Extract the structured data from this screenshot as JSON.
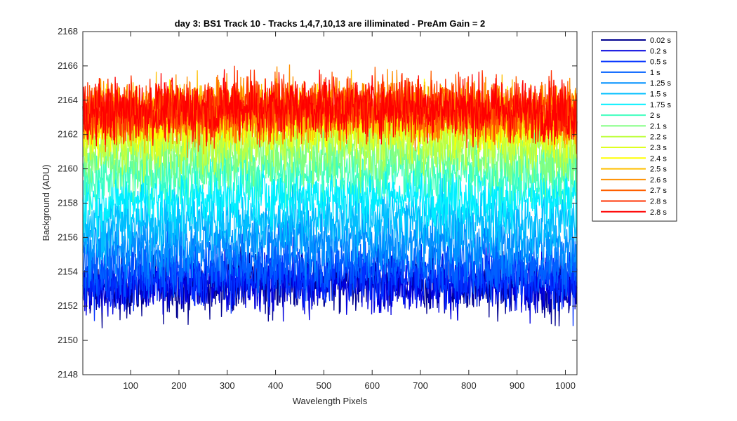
{
  "chart_data": {
    "type": "line",
    "title": "day 3: BS1  Track 10 - Tracks 1,4,7,10,13 are illiminated - PreAm Gain = 2",
    "xlabel": "Wavelength Pixels",
    "ylabel": "Background (ADU)",
    "xlim": [
      1,
      1024
    ],
    "ylim": [
      2148,
      2168
    ],
    "xticks": [
      100,
      200,
      300,
      400,
      500,
      600,
      700,
      800,
      900,
      1000
    ],
    "yticks": [
      2148,
      2150,
      2152,
      2154,
      2156,
      2158,
      2160,
      2162,
      2164,
      2166,
      2168
    ],
    "grid": false,
    "legend_position": "outside-right-top",
    "series": [
      {
        "name": "0.02 s",
        "color": "#00008F",
        "mean": 2153.0,
        "noise": 0.9
      },
      {
        "name": "0.2 s",
        "color": "#0000DF",
        "mean": 2153.1,
        "noise": 0.9
      },
      {
        "name": "0.5 s",
        "color": "#0030FF",
        "mean": 2153.5,
        "noise": 0.9
      },
      {
        "name": "1 s",
        "color": "#0060FF",
        "mean": 2154.3,
        "noise": 0.9
      },
      {
        "name": "1.25 s",
        "color": "#0090FF",
        "mean": 2155.5,
        "noise": 0.9
      },
      {
        "name": "1.5 s",
        "color": "#00BFFF",
        "mean": 2156.8,
        "noise": 0.9
      },
      {
        "name": "1.75 s",
        "color": "#00EFFF",
        "mean": 2158.2,
        "noise": 0.9
      },
      {
        "name": "2 s",
        "color": "#40FFBF",
        "mean": 2159.6,
        "noise": 0.9
      },
      {
        "name": "2.1 s",
        "color": "#80FF80",
        "mean": 2160.6,
        "noise": 0.9
      },
      {
        "name": "2.2 s",
        "color": "#BFFF40",
        "mean": 2161.5,
        "noise": 0.9
      },
      {
        "name": "2.3 s",
        "color": "#DFFF20",
        "mean": 2162.3,
        "noise": 0.9
      },
      {
        "name": "2.4 s",
        "color": "#FFFF00",
        "mean": 2162.8,
        "noise": 0.9
      },
      {
        "name": "2.5 s",
        "color": "#FFBF00",
        "mean": 2163.0,
        "noise": 0.9
      },
      {
        "name": "2.6 s",
        "color": "#FF9000",
        "mean": 2163.1,
        "noise": 0.9
      },
      {
        "name": "2.7 s",
        "color": "#FF6000",
        "mean": 2163.2,
        "noise": 0.9
      },
      {
        "name": "2.8 s",
        "color": "#FF3000",
        "mean": 2163.3,
        "noise": 0.9
      },
      {
        "name": "2.8 s",
        "color": "#FF0000",
        "mean": 2163.3,
        "noise": 0.9
      }
    ]
  }
}
